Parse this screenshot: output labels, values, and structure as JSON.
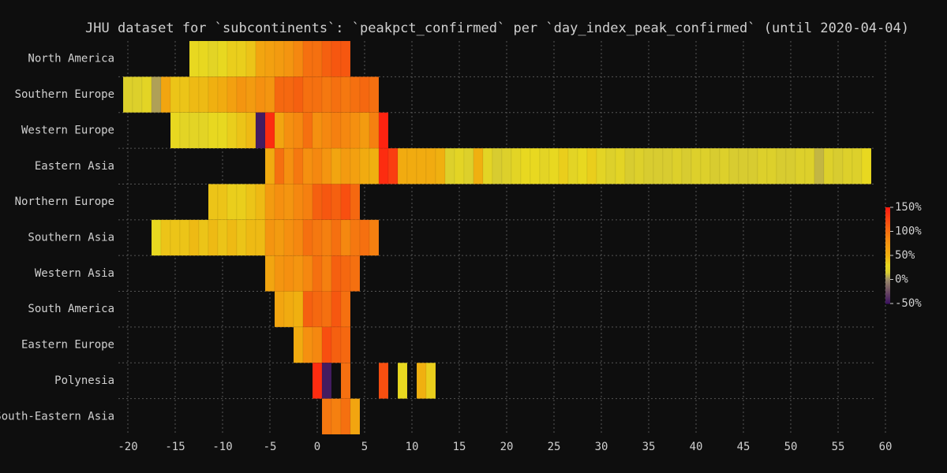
{
  "chart_data": {
    "type": "heatmap",
    "title": "JHU dataset for `subcontinents`: `peakpct_confirmed` per `day_index_peak_confirmed` (until 2020-04-04)",
    "xlim": [
      -21,
      61
    ],
    "xticks": [
      -20,
      -15,
      -10,
      -5,
      0,
      5,
      10,
      15,
      20,
      25,
      30,
      35,
      40,
      45,
      50,
      55,
      60
    ],
    "grid": true,
    "colorscale": [
      [
        -50,
        "#3a1060"
      ],
      [
        -25,
        "#6a4a62"
      ],
      [
        0,
        "#9a8a6a"
      ],
      [
        15,
        "#d8cc30"
      ],
      [
        30,
        "#e8d820"
      ],
      [
        50,
        "#f0b010"
      ],
      [
        80,
        "#f59010"
      ],
      [
        110,
        "#f56010"
      ],
      [
        150,
        "#ff1a10"
      ]
    ],
    "colorbar_lim": [
      -50,
      150
    ],
    "colorbar_ticks": [
      {
        "value": -50,
        "label": "-50%"
      },
      {
        "value": 0,
        "label": "0%"
      },
      {
        "value": 50,
        "label": "50%"
      },
      {
        "value": 100,
        "label": "100%"
      },
      {
        "value": 150,
        "label": "150%"
      }
    ],
    "series": [
      {
        "name": "North America",
        "x": [
          -13,
          -12,
          -11,
          -10,
          -9,
          -8,
          -7,
          -6,
          -5,
          -4,
          -3,
          -2,
          -1,
          0,
          1,
          2,
          3
        ],
        "values": [
          30,
          30,
          25,
          30,
          35,
          35,
          40,
          60,
          65,
          70,
          75,
          85,
          100,
          100,
          110,
          115,
          115
        ]
      },
      {
        "name": "Southern Europe",
        "x": [
          -20,
          -19,
          -18,
          -17,
          -16,
          -15,
          -14,
          -13,
          -12,
          -11,
          -10,
          -9,
          -8,
          -7,
          -6,
          -5,
          -4,
          -3,
          -2,
          -1,
          0,
          1,
          2,
          3,
          4,
          5,
          6
        ],
        "values": [
          20,
          20,
          25,
          5,
          60,
          40,
          40,
          45,
          45,
          50,
          55,
          65,
          75,
          70,
          80,
          75,
          105,
          105,
          110,
          100,
          100,
          95,
          100,
          95,
          100,
          105,
          100
        ]
      },
      {
        "name": "Western Europe",
        "x": [
          -15,
          -14,
          -13,
          -12,
          -11,
          -10,
          -9,
          -8,
          -7,
          -6,
          -5,
          -4,
          -3,
          -2,
          -1,
          0,
          1,
          2,
          3,
          4,
          5,
          6,
          7
        ],
        "values": [
          30,
          25,
          25,
          25,
          30,
          30,
          35,
          40,
          45,
          -45,
          140,
          60,
          80,
          85,
          100,
          80,
          85,
          90,
          85,
          80,
          70,
          90,
          145
        ]
      },
      {
        "name": "Eastern Asia",
        "x": [
          -5,
          -4,
          -3,
          -2,
          -1,
          0,
          1,
          2,
          3,
          4,
          5,
          6,
          7,
          8,
          9,
          10,
          11,
          12,
          13,
          14,
          15,
          16,
          17,
          18,
          19,
          20,
          21,
          22,
          23,
          24,
          25,
          26,
          27,
          28,
          29,
          30,
          31,
          32,
          33,
          34,
          35,
          36,
          37,
          38,
          39,
          40,
          41,
          42,
          43,
          44,
          45,
          46,
          47,
          48,
          49,
          50,
          51,
          52,
          53,
          54,
          55,
          56,
          57,
          58
        ],
        "values": [
          55,
          100,
          80,
          95,
          80,
          85,
          75,
          60,
          70,
          65,
          55,
          50,
          140,
          130,
          55,
          55,
          55,
          55,
          50,
          20,
          25,
          20,
          50,
          25,
          15,
          20,
          25,
          30,
          30,
          25,
          30,
          35,
          25,
          30,
          35,
          25,
          20,
          25,
          15,
          20,
          15,
          15,
          15,
          20,
          15,
          20,
          20,
          15,
          20,
          15,
          15,
          15,
          20,
          20,
          15,
          15,
          20,
          20,
          10,
          20,
          15,
          20,
          20,
          30
        ]
      },
      {
        "name": "Northern Europe",
        "x": [
          -11,
          -10,
          -9,
          -8,
          -7,
          -6,
          -5,
          -4,
          -3,
          -2,
          -1,
          0,
          1,
          2,
          3,
          4
        ],
        "values": [
          40,
          40,
          35,
          35,
          40,
          45,
          70,
          80,
          75,
          85,
          90,
          110,
          115,
          110,
          120,
          105
        ]
      },
      {
        "name": "Southern Asia",
        "x": [
          -17,
          -16,
          -15,
          -14,
          -13,
          -12,
          -11,
          -10,
          -9,
          -8,
          -7,
          -6,
          -5,
          -4,
          -3,
          -2,
          -1,
          0,
          1,
          2,
          3,
          4,
          5,
          6
        ],
        "values": [
          30,
          40,
          40,
          40,
          45,
          40,
          45,
          40,
          45,
          40,
          45,
          45,
          75,
          70,
          80,
          85,
          100,
          95,
          90,
          100,
          85,
          95,
          100,
          90
        ]
      },
      {
        "name": "Western Asia",
        "x": [
          -5,
          -4,
          -3,
          -2,
          -1,
          0,
          1,
          2,
          3,
          4
        ],
        "values": [
          60,
          75,
          80,
          75,
          85,
          100,
          90,
          110,
          105,
          100
        ]
      },
      {
        "name": "South America",
        "x": [
          -4,
          -3,
          -2,
          -1,
          0,
          1,
          2,
          3
        ],
        "values": [
          60,
          55,
          50,
          110,
          105,
          100,
          115,
          100
        ]
      },
      {
        "name": "Eastern Europe",
        "x": [
          -2,
          -1,
          0,
          1,
          2,
          3
        ],
        "values": [
          55,
          80,
          85,
          120,
          110,
          105
        ]
      },
      {
        "name": "Polynesia",
        "x": [
          0,
          1,
          3,
          7,
          9,
          11,
          12
        ],
        "values": [
          140,
          -45,
          100,
          120,
          30,
          50,
          35
        ]
      },
      {
        "name": "South-Eastern Asia",
        "x": [
          1,
          2,
          3,
          4
        ],
        "values": [
          95,
          90,
          100,
          60
        ]
      }
    ]
  }
}
